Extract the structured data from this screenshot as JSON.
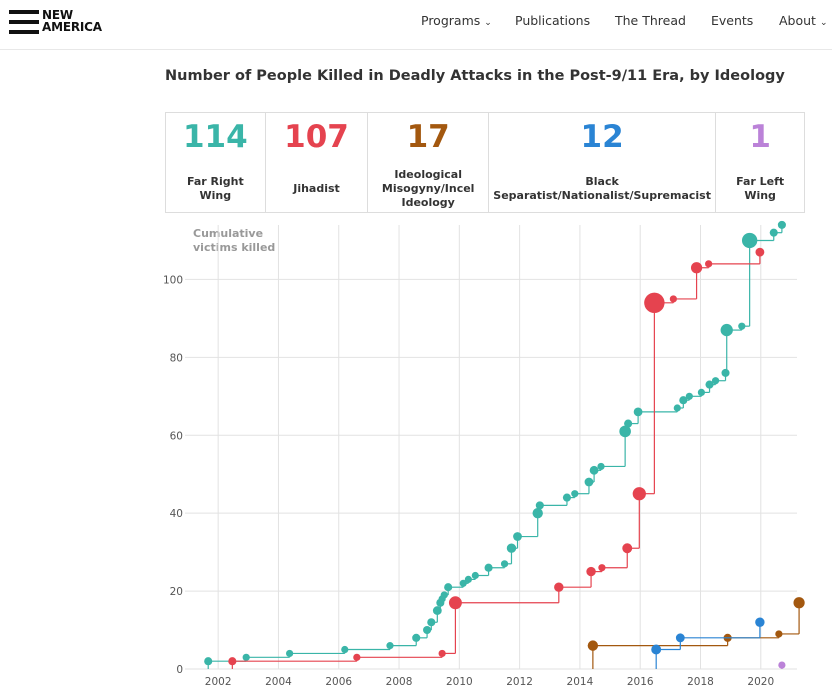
{
  "nav": {
    "logo": [
      "NEW",
      "AMERICA"
    ],
    "items": [
      "Programs",
      "Publications",
      "The Thread",
      "Events",
      "About"
    ]
  },
  "header": {
    "title": "Number of People Killed in Deadly Attacks in the Post-9/11 Era, by Ideology"
  },
  "stats": [
    {
      "value": 114,
      "label": "Far Right Wing",
      "color": "#3ab5a8"
    },
    {
      "value": 107,
      "label": "Jihadist",
      "color": "#e5434f"
    },
    {
      "value": 17,
      "label": "Ideological Misogyny/Incel Ideology",
      "color": "#a3580f"
    },
    {
      "value": 12,
      "label": "Black Separatist/Nationalist/Supremacist",
      "color": "#2a84d4"
    },
    {
      "value": 1,
      "label": "Far Left Wing",
      "color": "#bb82d8"
    }
  ],
  "chart_data": {
    "type": "step",
    "ylabel": "Cumulative victims killed",
    "xlim": [
      2000.9,
      2021.4
    ],
    "ylim": [
      0,
      115
    ],
    "xticks": [
      2002,
      2004,
      2006,
      2008,
      2010,
      2012,
      2014,
      2016,
      2018,
      2020
    ],
    "yticks": [
      0,
      20,
      40,
      60,
      80,
      100
    ],
    "grid": true,
    "series": [
      {
        "color": "#3ab5a8",
        "x": [
          2001.67,
          2002.93,
          2004.37,
          2006.2,
          2007.7,
          2008.57,
          2008.93,
          2009.07,
          2009.27,
          2009.37,
          2009.43,
          2009.5,
          2009.63,
          2010.13,
          2010.3,
          2010.53,
          2010.97,
          2011.5,
          2011.73,
          2011.93,
          2012.6,
          2012.67,
          2013.57,
          2013.83,
          2014.3,
          2014.47,
          2014.7,
          2015.5,
          2015.6,
          2015.93,
          2017.23,
          2017.43,
          2017.63,
          2018.03,
          2018.3,
          2018.5,
          2018.83,
          2018.87,
          2019.37,
          2019.63,
          2020.43,
          2020.7
        ],
        "values": [
          2,
          3,
          4,
          5,
          6,
          8,
          10,
          12,
          15,
          17,
          18,
          19,
          21,
          22,
          23,
          24,
          26,
          27,
          31,
          34,
          40,
          42,
          44,
          45,
          48,
          51,
          52,
          61,
          63,
          66,
          67,
          69,
          70,
          71,
          73,
          74,
          76,
          87,
          88,
          110,
          112,
          114
        ]
      },
      {
        "color": "#e5434f",
        "x": [
          2002.47,
          2006.6,
          2009.43,
          2009.87,
          2013.3,
          2014.37,
          2014.73,
          2015.57,
          2015.97,
          2016.47,
          2017.1,
          2017.87,
          2018.27,
          2019.97
        ],
        "values": [
          2,
          3,
          4,
          17,
          21,
          25,
          26,
          31,
          45,
          94,
          95,
          103,
          104,
          107
        ]
      },
      {
        "color": "#a3580f",
        "x": [
          2014.43,
          2018.9,
          2020.6,
          2021.27
        ],
        "values": [
          6,
          8,
          9,
          17
        ]
      },
      {
        "color": "#2a84d4",
        "x": [
          2016.53,
          2017.33,
          2019.97
        ],
        "values": [
          5,
          8,
          12
        ]
      },
      {
        "color": "#bb82d8",
        "x": [
          2020.7
        ],
        "values": [
          1
        ]
      }
    ]
  }
}
